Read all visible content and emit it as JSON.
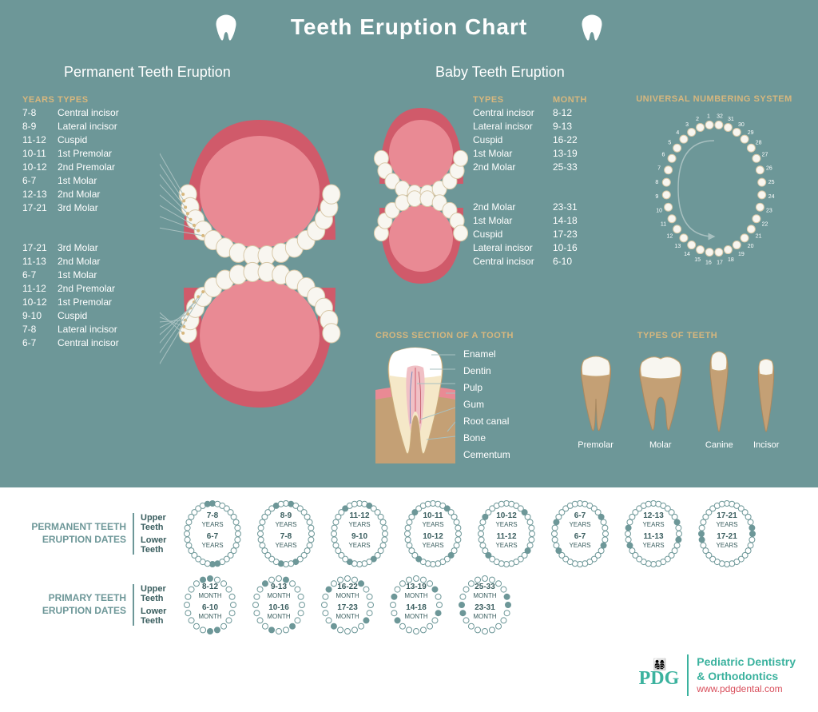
{
  "colors": {
    "panel_bg": "#6d9798",
    "accent": "#d7b77e",
    "white": "#ffffff",
    "gum": "#d05a6a",
    "gum_inner": "#e98a94",
    "tooth_fill": "#f8f6f0",
    "tooth_stroke": "#c8a878",
    "tooth_brown": "#c4a075",
    "mini_stroke": "#6d9798",
    "text_dark": "#3a5e5f",
    "logo_teal": "#3bb29e",
    "logo_red": "#d94f5c"
  },
  "title": "Teeth Eruption Chart",
  "sections": {
    "permanent_title": "Permanent Teeth Eruption",
    "baby_title": "Baby Teeth Eruption",
    "universal_title": "UNIVERSAL NUMBERING SYSTEM",
    "cross_title": "CROSS SECTION OF A TOOTH",
    "types_title": "TYPES OF TEETH"
  },
  "headers": {
    "years": "YEARS",
    "types": "TYPES",
    "month": "MONTH",
    "upper": "Upper Teeth",
    "lower": "Lower Teeth"
  },
  "permanent": {
    "upper": [
      {
        "years": "7-8",
        "type": "Central incisor"
      },
      {
        "years": "8-9",
        "type": "Lateral incisor"
      },
      {
        "years": "11-12",
        "type": "Cuspid"
      },
      {
        "years": "10-11",
        "type": "1st Premolar"
      },
      {
        "years": "10-12",
        "type": "2nd Premolar"
      },
      {
        "years": "6-7",
        "type": "1st Molar"
      },
      {
        "years": "12-13",
        "type": "2nd Molar"
      },
      {
        "years": "17-21",
        "type": "3rd Molar"
      }
    ],
    "lower": [
      {
        "years": "17-21",
        "type": "3rd Molar"
      },
      {
        "years": "11-13",
        "type": "2nd Molar"
      },
      {
        "years": "6-7",
        "type": "1st Molar"
      },
      {
        "years": "11-12",
        "type": "2nd Premolar"
      },
      {
        "years": "10-12",
        "type": "1st Premolar"
      },
      {
        "years": "9-10",
        "type": "Cuspid"
      },
      {
        "years": "7-8",
        "type": "Lateral incisor"
      },
      {
        "years": "6-7",
        "type": "Central incisor"
      }
    ]
  },
  "baby": {
    "upper": [
      {
        "type": "Central incisor",
        "month": "8-12"
      },
      {
        "type": "Lateral incisor",
        "month": "9-13"
      },
      {
        "type": "Cuspid",
        "month": "16-22"
      },
      {
        "type": "1st Molar",
        "month": "13-19"
      },
      {
        "type": "2nd Molar",
        "month": "25-33"
      }
    ],
    "lower": [
      {
        "type": "2nd Molar",
        "month": "23-31"
      },
      {
        "type": "1st Molar",
        "month": "14-18"
      },
      {
        "type": "Cuspid",
        "month": "17-23"
      },
      {
        "type": "Lateral incisor",
        "month": "10-16"
      },
      {
        "type": "Central incisor",
        "month": "6-10"
      }
    ]
  },
  "cross_section_labels": [
    "Enamel",
    "Dentin",
    "Pulp",
    "Gum",
    "Root canal",
    "Bone",
    "Cementum"
  ],
  "tooth_types": [
    "Premolar",
    "Molar",
    "Canine",
    "Incisor"
  ],
  "universal_numbers": 32,
  "bottom": {
    "perm_label": "PERMANENT TEETH ERUPTION DATES",
    "prim_label": "PRIMARY TEETH ERUPTION DATES",
    "perm_upper": [
      "7-8",
      "8-9",
      "11-12",
      "10-11",
      "10-12",
      "6-7",
      "12-13",
      "17-21"
    ],
    "perm_lower": [
      "6-7",
      "7-8",
      "9-10",
      "10-12",
      "11-12",
      "6-7",
      "11-13",
      "17-21"
    ],
    "perm_unit": "YEARS",
    "prim_upper": [
      "8-12",
      "9-13",
      "16-22",
      "13-19",
      "25-33"
    ],
    "prim_lower": [
      "6-10",
      "10-16",
      "17-23",
      "14-18",
      "23-31"
    ],
    "prim_unit": "MONTH"
  },
  "logo": {
    "mark": "PDG",
    "line1": "Pediatric Dentistry",
    "line2": "& Orthodontics",
    "url": "www.pdgdental.com"
  }
}
